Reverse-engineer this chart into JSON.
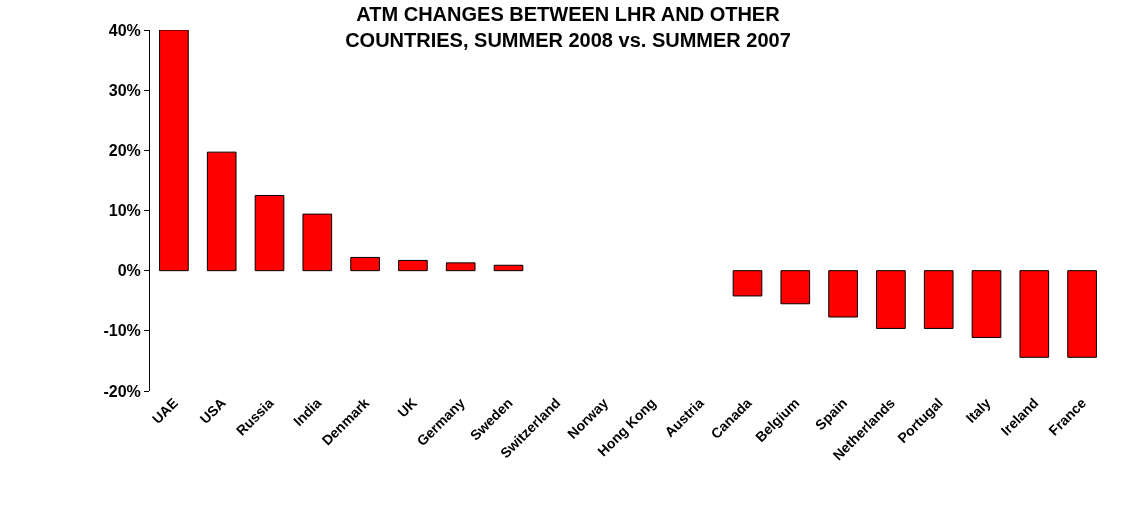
{
  "chart_data": {
    "type": "bar",
    "title": "ATM CHANGES BETWEEN LHR AND OTHER\nCOUNTRIES, SUMMER 2008 vs. SUMMER 2007",
    "categories": [
      "UAE",
      "USA",
      "Russia",
      "India",
      "Denmark",
      "UK",
      "Germany",
      "Sweden",
      "Switzerland",
      "Norway",
      "Hong Kong",
      "Austria",
      "Canada",
      "Belgium",
      "Spain",
      "Netherlands",
      "Portugal",
      "Italy",
      "Ireland",
      "France"
    ],
    "values": [
      40,
      19.7,
      12.5,
      9.4,
      2.2,
      1.7,
      1.3,
      0.9,
      null,
      null,
      null,
      null,
      -4.2,
      -5.5,
      -7.7,
      -9.6,
      -9.6,
      -11.1,
      -14.4,
      -14.4
    ],
    "color": "#ff0000",
    "ylim": [
      -20,
      40
    ],
    "yticks": [
      {
        "value": -20,
        "label": "-20%"
      },
      {
        "value": -10,
        "label": "-10%"
      },
      {
        "value": 0,
        "label": "0%"
      },
      {
        "value": 10,
        "label": "10%"
      },
      {
        "value": 20,
        "label": "20%"
      },
      {
        "value": 30,
        "label": "30%"
      },
      {
        "value": 40,
        "label": "40%"
      }
    ],
    "grid": false,
    "legend": false
  }
}
